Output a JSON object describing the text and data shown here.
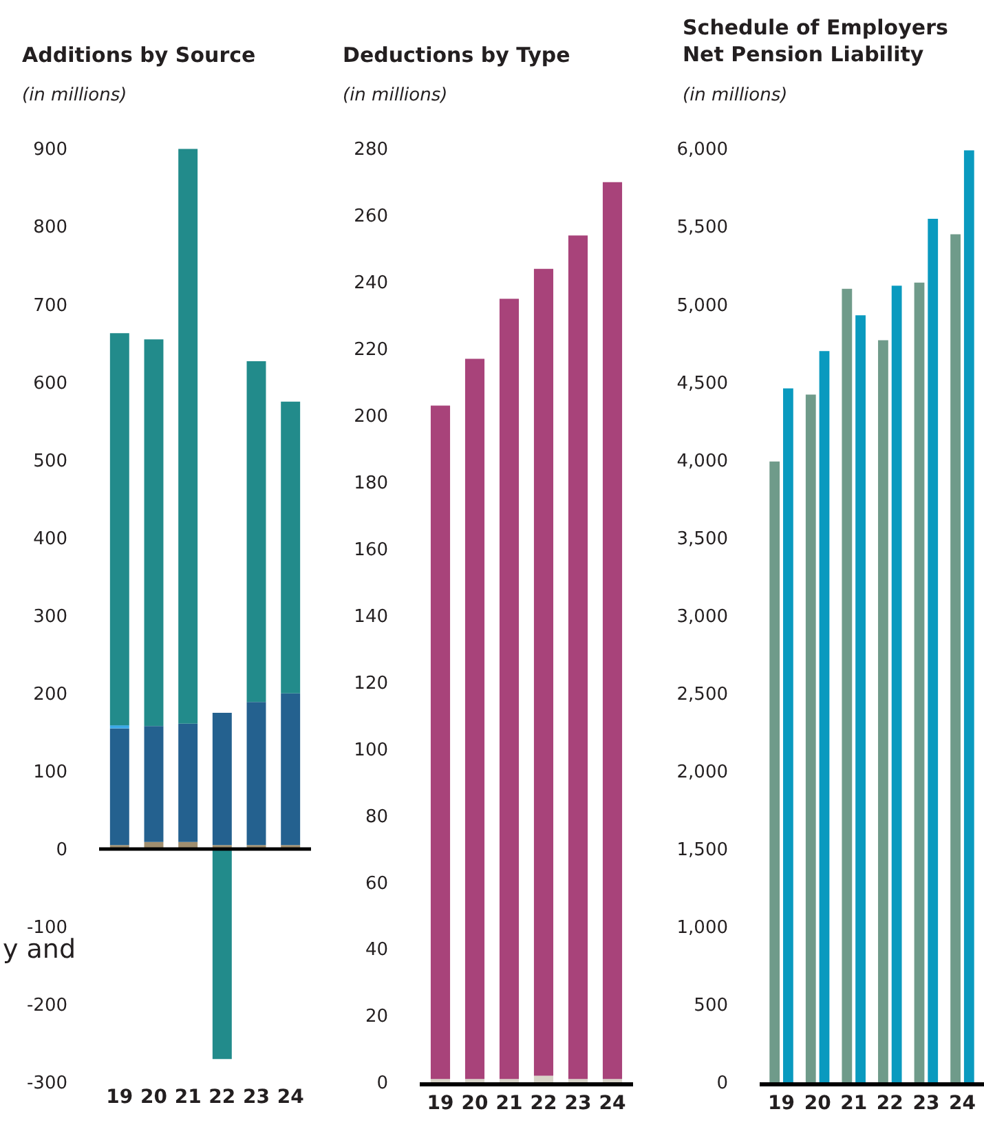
{
  "chart_data": [
    {
      "type": "bar",
      "title": "Additions by Source",
      "subtitle": "(in millions)",
      "categories": [
        "19",
        "20",
        "21",
        "22",
        "23",
        "24"
      ],
      "stacked": true,
      "series": [
        {
          "color": "#a08e6e",
          "values": [
            5,
            9,
            9,
            5,
            5,
            5
          ]
        },
        {
          "color": "#24618f",
          "values": [
            150,
            149,
            152,
            170,
            184,
            195
          ]
        },
        {
          "color": "#3aa8e8",
          "values": [
            4,
            null,
            null,
            null,
            null,
            null
          ]
        },
        {
          "color": "#228b8b",
          "values": [
            504,
            497,
            739,
            -270,
            438,
            375
          ]
        }
      ],
      "ylim": [
        -300,
        900
      ],
      "yticks": [
        -300,
        -200,
        -100,
        0,
        100,
        200,
        300,
        400,
        500,
        600,
        700,
        800,
        900
      ],
      "ref_lines": [
        {
          "axis": "y",
          "value": 0,
          "color": "#000000"
        }
      ],
      "annotations": [
        "y and"
      ]
    },
    {
      "type": "bar",
      "title": "Deductions by Type",
      "subtitle": "(in millions)",
      "categories": [
        "19",
        "20",
        "21",
        "22",
        "23",
        "24"
      ],
      "stacked": true,
      "series": [
        {
          "color": "#d8d4c8",
          "values": [
            1,
            1,
            1,
            2,
            1,
            1
          ]
        },
        {
          "color": "#a8437a",
          "values": [
            202,
            216,
            234,
            242,
            253,
            269
          ]
        }
      ],
      "ylim": [
        0,
        280
      ],
      "yticks": [
        0,
        20,
        40,
        60,
        80,
        100,
        120,
        140,
        160,
        180,
        200,
        220,
        240,
        260,
        280
      ]
    },
    {
      "type": "bar",
      "title": "Schedule of Employers\nNet Pension Liability",
      "subtitle": "(in millions)",
      "categories": [
        "19",
        "20",
        "21",
        "22",
        "23",
        "24"
      ],
      "series": [
        {
          "color": "#6f9b8a",
          "values": [
            3990,
            4420,
            5100,
            4770,
            5140,
            5450
          ]
        },
        {
          "color": "#0a9abf",
          "values": [
            4460,
            4700,
            4930,
            5120,
            5550,
            5990
          ]
        }
      ],
      "ylim": [
        0,
        6000
      ],
      "yticks": [
        0,
        {
          "value": 500,
          "label": "500"
        },
        {
          "value": 1000,
          "label": "1,000"
        },
        {
          "value": 1500,
          "label": "1,500"
        },
        {
          "value": 2000,
          "label": "2,000"
        },
        {
          "value": 2500,
          "label": "2,500"
        },
        {
          "value": 3000,
          "label": "3,000"
        },
        {
          "value": 3500,
          "label": "3,500"
        },
        {
          "value": 4000,
          "label": "4,000"
        },
        {
          "value": 4500,
          "label": "4,500"
        },
        {
          "value": 5000,
          "label": "5,000"
        },
        {
          "value": 5500,
          "label": "5,500"
        },
        {
          "value": 6000,
          "label": "6,000"
        }
      ]
    }
  ]
}
